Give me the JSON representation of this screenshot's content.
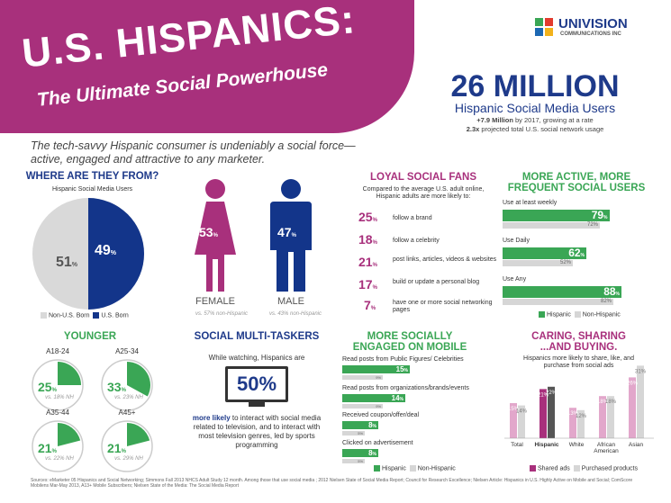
{
  "header": {
    "title": "U.S. HISPANICS:",
    "subtitle": "The Ultimate Social Powerhouse",
    "tagline": "The tech-savvy Hispanic consumer is undeniably a social force—active, engaged and attractive to any marketer."
  },
  "logo": {
    "name": "UNIVISION",
    "sub": "COMMUNICATIONS INC"
  },
  "stat": {
    "big": "26 MILLION",
    "label": "Hispanic Social Media Users",
    "line1_bold": "+7.9 Million",
    "line1": " by 2017, growing at a rate",
    "line2_bold": "2.3x",
    "line2": " projected total U.S. social network usage"
  },
  "where": {
    "title": "WHERE ARE THEY FROM?",
    "subtitle": "Hispanic Social Media Users",
    "non_us": "51",
    "us": "49",
    "legend_non": "Non-U.S. Born",
    "legend_us": "U.S. Born",
    "color_non": "#d9d9d9",
    "color_us": "#13358a"
  },
  "gender": {
    "female_pct": "53",
    "male_pct": "47",
    "female": "FEMALE",
    "male": "MALE",
    "female_vs": "vs. 57% non-Hispanic",
    "male_vs": "vs. 43% non-Hispanic"
  },
  "loyal": {
    "title": "LOYAL SOCIAL FANS",
    "intro": "Compared to the average U.S. adult online, Hispanic adults are more likely to:",
    "items": [
      {
        "pct": "25",
        "text": "follow a brand"
      },
      {
        "pct": "18",
        "text": "follow a celebrity"
      },
      {
        "pct": "21",
        "text": "post links, articles, videos & websites"
      },
      {
        "pct": "17",
        "text": "build or update a personal blog"
      },
      {
        "pct": "7",
        "text": "have one or more social networking pages"
      }
    ]
  },
  "active": {
    "title1": "MORE ACTIVE, MORE",
    "title2": "FREQUENT SOCIAL USERS",
    "rows": [
      {
        "label": "Use at least weekly",
        "h": 79,
        "n": 72
      },
      {
        "label": "Use Daily",
        "h": 62,
        "n": 52
      },
      {
        "label": "Use Any",
        "h": 88,
        "n": 82
      }
    ],
    "legend_h": "Hispanic",
    "legend_n": "Non-Hispanic"
  },
  "younger": {
    "title": "YOUNGER",
    "groups": [
      {
        "label": "A18-24",
        "pct": "25",
        "vs": "vs. 18% NH",
        "v": 25
      },
      {
        "label": "A25-34",
        "pct": "33",
        "vs": "vs. 23% NH",
        "v": 33
      },
      {
        "label": "A35-44",
        "pct": "21",
        "vs": "vs. 22% NH",
        "v": 21
      },
      {
        "label": "A45+",
        "pct": "21",
        "vs": "vs. 29% NH",
        "v": 21
      }
    ]
  },
  "multi": {
    "title": "SOCIAL MULTI-TASKERS",
    "while": "While watching, Hispanics are",
    "pct": "50%",
    "bold": "more likely",
    "text": " to interact with social media related to television, and to interact with most television genres, led by sports programming"
  },
  "mobile": {
    "title1": "MORE SOCIALLY",
    "title2": "ENGAGED ON MOBILE",
    "rows": [
      {
        "label": "Read posts from Public Figures/ Celebrities",
        "h": 15,
        "n": 9
      },
      {
        "label": "Read posts from organizations/brands/events",
        "h": 14,
        "n": 9
      },
      {
        "label": "Received coupon/offer/deal",
        "h": 8,
        "n": 5
      },
      {
        "label": "Clicked on advertisement",
        "h": 8,
        "n": 5
      }
    ],
    "legend_h": "Hispanic",
    "legend_n": "Non-Hispanic"
  },
  "caring": {
    "title1": "CARING, SHARING",
    "title2": "...AND BUYING.",
    "intro": "Hispanics more likely to share, like, and purchase from social ads",
    "cats": [
      "Total",
      "Hispanic",
      "White",
      "African American",
      "Asian"
    ],
    "shared": [
      15,
      21,
      13,
      18,
      26
    ],
    "purchased": [
      14,
      22,
      12,
      18,
      31
    ],
    "legend_s": "Shared ads",
    "legend_p": "Purchased products"
  },
  "sources": "Sources: eMarketer 05 Hispanics and Social Networking; Simmons Fall 2013 NHCS Adult Study 12 month. Among those that use social media ; 2012 Nielsen State of Social Media Report; Council for Research Excellence; Nielsen Article: Hispanics in U.S. Highly Active on Mobile and Social; ComScore Mobilens Mar-May 2013, A13+ Mobile Subscribers; Nielsen State of the Media: The Social Media Report"
}
